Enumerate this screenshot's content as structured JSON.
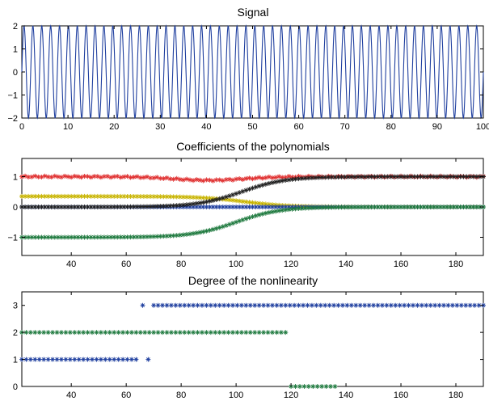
{
  "chart_data": [
    {
      "type": "line",
      "title": "Signal",
      "xlabel": "",
      "ylabel": "",
      "xlim": [
        0,
        100
      ],
      "ylim": [
        -2,
        2
      ],
      "xticks": [
        "0",
        "10",
        "20",
        "30",
        "40",
        "50",
        "60",
        "70",
        "80",
        "90",
        "100"
      ],
      "yticks": [
        "2",
        "1",
        "0",
        "−1",
        "−2"
      ],
      "xtick_values": [
        0,
        10,
        20,
        30,
        40,
        50,
        60,
        70,
        80,
        90,
        100
      ],
      "ytick_values": [
        2,
        1,
        0,
        -1,
        -2
      ],
      "grid": false,
      "series": [
        {
          "color": "#1f3f9f",
          "amplitude": 2,
          "cycles": 52,
          "note_shape": "sine-like oscillation over full x range"
        }
      ]
    },
    {
      "type": "scatter",
      "title": "Coefficients of the polynomials",
      "xlabel": "",
      "ylabel": "",
      "xlim": [
        22,
        190
      ],
      "ylim": [
        -1.6,
        1.6
      ],
      "xticks": [
        "40",
        "60",
        "80",
        "100",
        "120",
        "140",
        "160",
        "180"
      ],
      "yticks": [
        "1",
        "0",
        "−1"
      ],
      "xtick_values": [
        40,
        60,
        80,
        100,
        120,
        140,
        160,
        180
      ],
      "ytick_values": [
        1,
        0,
        -1
      ],
      "grid": false,
      "series": [
        {
          "color": "#e03030",
          "marker": "*",
          "start": 1.0,
          "end": 1.0,
          "dip_center": 90,
          "dip_depth": 0.12
        },
        {
          "color": "#c8b400",
          "marker": "*",
          "start": 0.35,
          "end": 0.0,
          "mid": 103
        },
        {
          "color": "#1f3f9f",
          "marker": "*",
          "start": 0.0,
          "end": 0.0
        },
        {
          "color": "#1f7a3f",
          "marker": "*",
          "start": -1.0,
          "end": 0.0,
          "mid": 100
        },
        {
          "color": "#202020",
          "marker": "*",
          "start": 0.0,
          "end": 1.0,
          "mid": 102
        }
      ]
    },
    {
      "type": "scatter",
      "title": "Degree of the nonlinearity",
      "xlabel": "",
      "ylabel": "",
      "xlim": [
        22,
        190
      ],
      "ylim": [
        0,
        3.5
      ],
      "xticks": [
        "40",
        "60",
        "80",
        "100",
        "120",
        "140",
        "160",
        "180"
      ],
      "yticks": [
        "3",
        "2",
        "1",
        "0"
      ],
      "xtick_values": [
        40,
        60,
        80,
        100,
        120,
        140,
        160,
        180
      ],
      "ytick_values": [
        3,
        2,
        1,
        0
      ],
      "grid": false,
      "series": [
        {
          "color": "#1f3f9f",
          "marker": "*",
          "segments": [
            {
              "y": 1,
              "x_start": 22,
              "x_end": 64
            },
            {
              "y": 1,
              "x_start": 68,
              "x_end": 68
            },
            {
              "y": 3,
              "x_start": 66,
              "x_end": 66
            },
            {
              "y": 3,
              "x_start": 70,
              "x_end": 190
            }
          ]
        },
        {
          "color": "#1f7a3f",
          "marker": "*",
          "segments": [
            {
              "y": 2,
              "x_start": 22,
              "x_end": 118
            },
            {
              "y": 0,
              "x_start": 120,
              "x_end": 136
            }
          ]
        }
      ]
    }
  ]
}
